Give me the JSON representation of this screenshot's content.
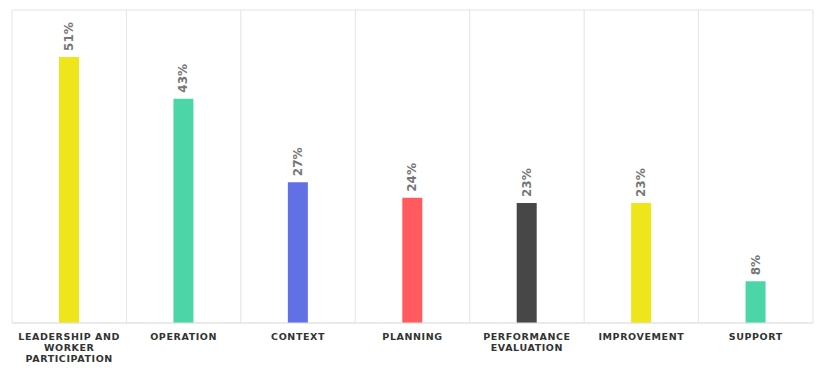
{
  "chart_data": {
    "type": "bar",
    "categories": [
      "LEADERSHIP AND WORKER PARTICIPATION",
      "OPERATION",
      "CONTEXT",
      "PLANNING",
      "PERFORMANCE EVALUATION",
      "IMPROVEMENT",
      "SUPPORT"
    ],
    "values": [
      51,
      43,
      27,
      24,
      23,
      23,
      8
    ],
    "value_labels": [
      "51%",
      "43%",
      "27%",
      "24%",
      "23%",
      "23%",
      "8%"
    ],
    "colors": [
      "#eee61a",
      "#4cd6a8",
      "#6270e6",
      "#ff5a5e",
      "#474747",
      "#eee61a",
      "#4cd6a8"
    ],
    "ylim": [
      0,
      60
    ],
    "grid": true,
    "data_labels": true,
    "tick_labels": "x"
  }
}
